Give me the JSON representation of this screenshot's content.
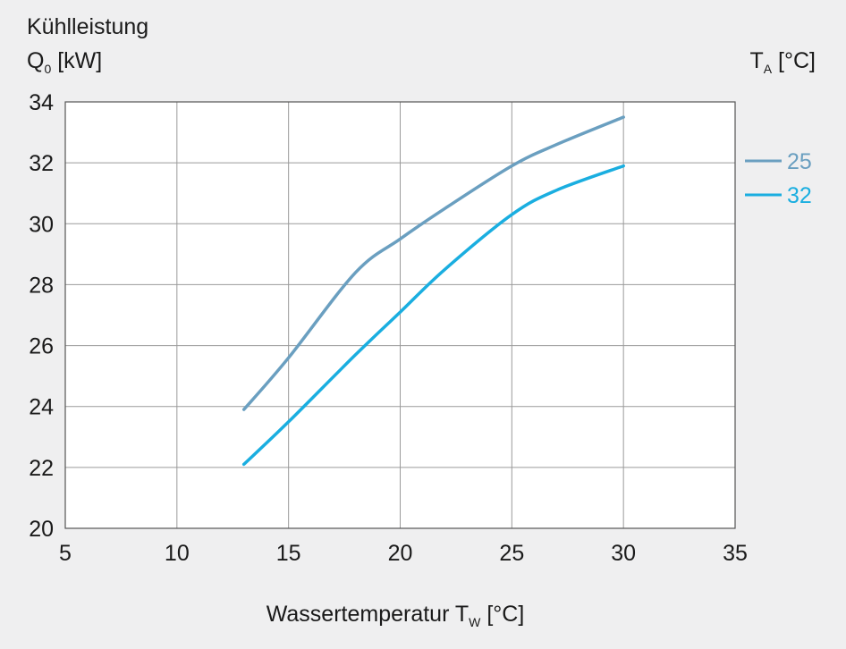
{
  "chart_data": {
    "type": "line",
    "ylabel_line1": "Kühlleistung",
    "ylabel_main": "Q",
    "ylabel_sub": "0",
    "ylabel_unit": " [kW]",
    "xlabel_main": "Wassertemperatur T",
    "xlabel_sub": "W",
    "xlabel_unit": " [°C]",
    "legend_title_main": "T",
    "legend_title_sub": "A",
    "legend_title_unit": " [°C]",
    "legend_position": "right",
    "xlim": [
      5,
      35
    ],
    "ylim": [
      20,
      34
    ],
    "xticks": [
      "5",
      "10",
      "15",
      "20",
      "25",
      "30",
      "35"
    ],
    "yticks": [
      "20",
      "22",
      "24",
      "26",
      "28",
      "30",
      "32",
      "34"
    ],
    "grid": true,
    "series": [
      {
        "name": "25",
        "color": "#6a9fc0",
        "x": [
          13,
          15,
          18,
          20,
          22,
          25,
          27,
          30
        ],
        "y": [
          23.9,
          25.6,
          28.4,
          29.5,
          30.5,
          31.9,
          32.6,
          33.5
        ]
      },
      {
        "name": "32",
        "color": "#1aaee0",
        "x": [
          13,
          15,
          18,
          20,
          22,
          25,
          27,
          30
        ],
        "y": [
          22.1,
          23.5,
          25.7,
          27.1,
          28.5,
          30.3,
          31.1,
          31.9
        ]
      }
    ]
  }
}
